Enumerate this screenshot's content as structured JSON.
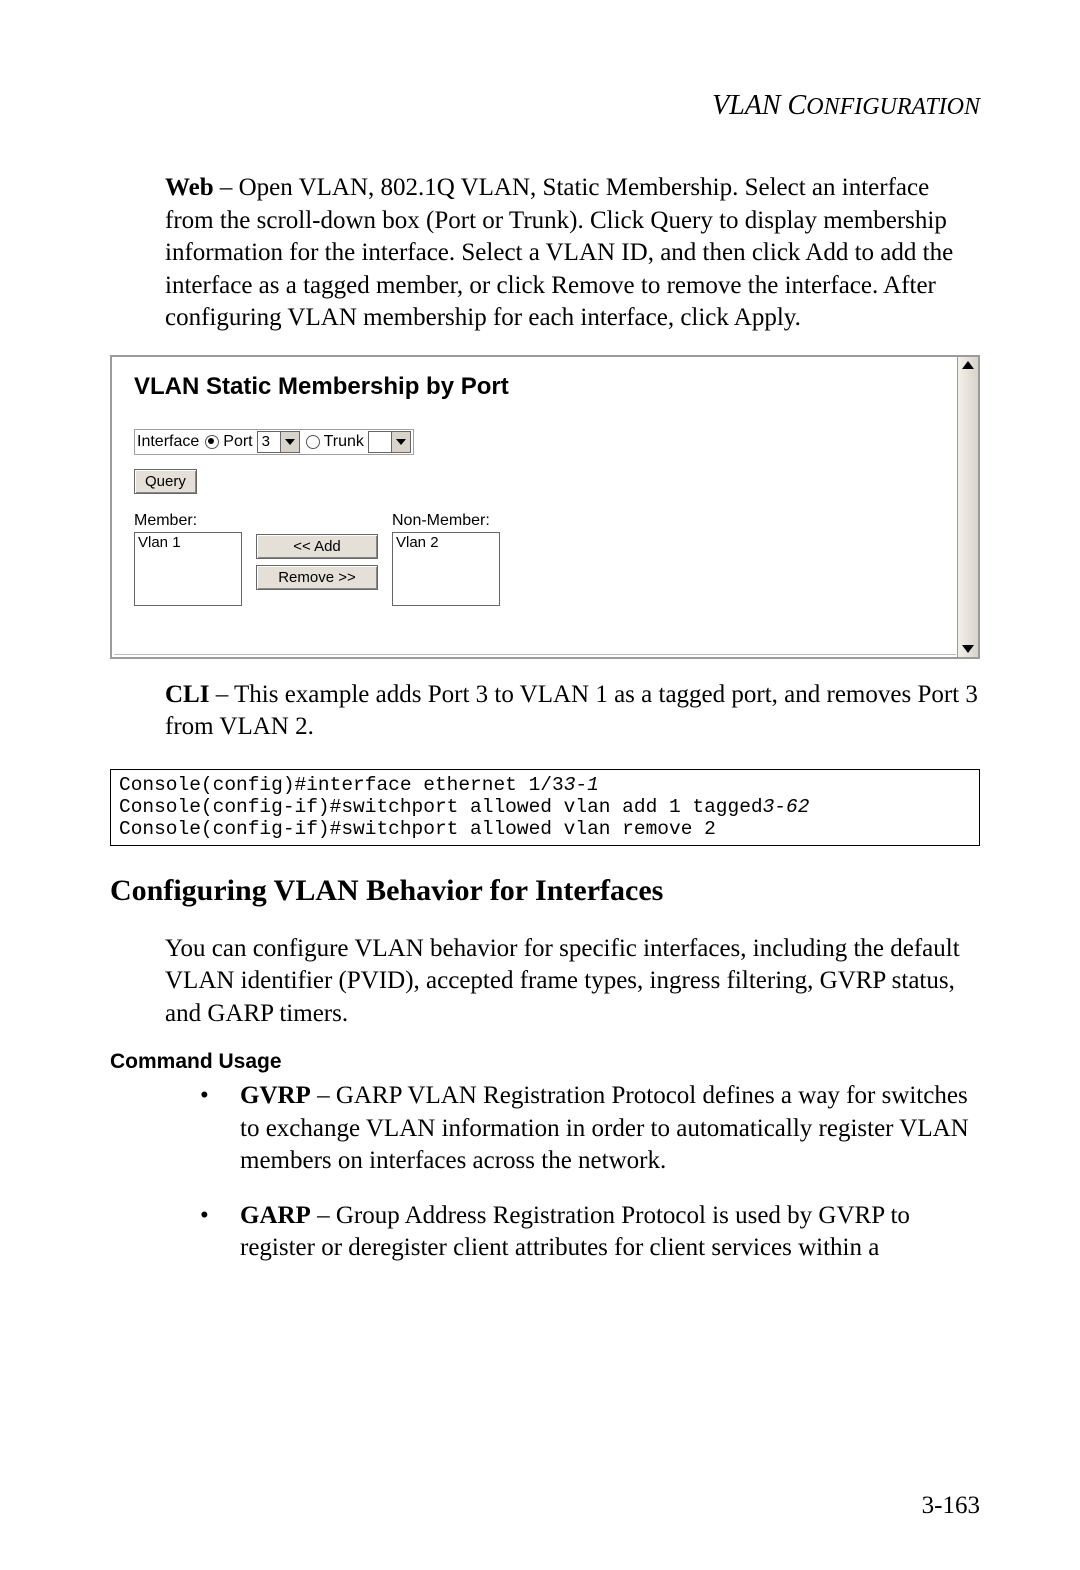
{
  "header": {
    "title_main": "VLAN C",
    "title_smallcaps": "ONFIGURATION"
  },
  "web_paragraph": {
    "lead": "Web",
    "text": " – Open VLAN, 802.1Q VLAN, Static Membership. Select an interface from the scroll-down box (Port or Trunk). Click Query to display membership information for the interface. Select a VLAN ID, and then click Add to add the interface as a tagged member, or click Remove to remove the interface. After configuring VLAN membership for each interface, click Apply."
  },
  "panel": {
    "title": "VLAN Static Membership by Port",
    "interface_label": "Interface",
    "port_label": "Port",
    "port_value": "3",
    "trunk_label": "Trunk",
    "trunk_value": "",
    "query_button": "Query",
    "member_label": "Member:",
    "nonmember_label": "Non-Member:",
    "member_item": "Vlan 1",
    "nonmember_item": "Vlan 2",
    "add_button": "<< Add",
    "remove_button": "Remove >>"
  },
  "cli_paragraph": {
    "lead": "CLI",
    "text": " – This example adds Port 3 to VLAN 1 as a tagged port, and removes Port 3 from VLAN 2."
  },
  "code": {
    "line1a": "Console(config)#interface ethernet 1/3",
    "line1b": "3-1",
    "line2a": "Console(config-if)#switchport allowed vlan add 1 tagged",
    "line2b": "3-62",
    "line3": "Console(config-if)#switchport allowed vlan remove 2"
  },
  "section_heading": "Configuring VLAN Behavior for Interfaces",
  "section_body": "You can configure VLAN behavior for specific interfaces, including the default VLAN identifier (PVID), accepted frame types, ingress filtering, GVRP status, and GARP timers.",
  "command_usage_heading": "Command Usage",
  "bullets": [
    {
      "term": "GVRP",
      "rest": " – GARP VLAN Registration Protocol defines a way for switches to exchange VLAN information in order to automatically register VLAN members on interfaces across the network."
    },
    {
      "term": "GARP",
      "rest": " – Group Address Registration Protocol is used by GVRP to register or deregister client attributes for client services within a"
    }
  ],
  "page_number": "3-163"
}
